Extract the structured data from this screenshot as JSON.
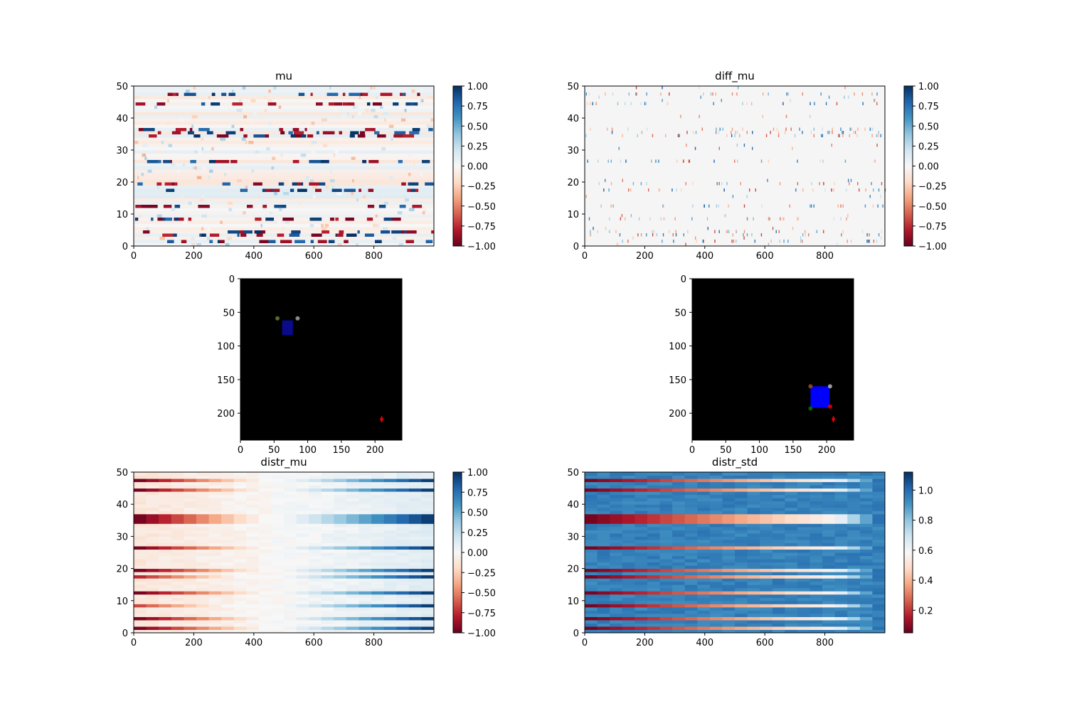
{
  "chart_data": [
    {
      "id": "mu",
      "type": "heatmap",
      "title": "mu",
      "xlim": [
        0,
        1000
      ],
      "ylim": [
        0,
        50
      ],
      "xticks": [
        0,
        200,
        400,
        600,
        800
      ],
      "yticks": [
        0,
        10,
        20,
        30,
        40,
        50
      ],
      "colormap": "RdBu",
      "colorbar": {
        "range": [
          -1.0,
          1.0
        ],
        "ticks": [
          "1.00",
          "0.75",
          "0.50",
          "0.25",
          "0.00",
          "−0.25",
          "−0.50",
          "−0.75",
          "−1.00"
        ]
      }
    },
    {
      "id": "diff_mu",
      "type": "heatmap",
      "title": "diff_mu",
      "xlim": [
        0,
        1000
      ],
      "ylim": [
        0,
        50
      ],
      "xticks": [
        0,
        200,
        400,
        600,
        800
      ],
      "yticks": [
        0,
        10,
        20,
        30,
        40,
        50
      ],
      "colormap": "RdBu",
      "colorbar": {
        "range": [
          -1.0,
          1.0
        ],
        "ticks": [
          "1.00",
          "0.75",
          "0.50",
          "0.25",
          "0.00",
          "−0.25",
          "−0.50",
          "−0.75",
          "−1.00"
        ]
      }
    },
    {
      "id": "frame_a",
      "type": "image",
      "xlim": [
        0,
        240
      ],
      "ylim": [
        0,
        240
      ],
      "xticks": [
        0,
        50,
        100,
        150,
        200
      ],
      "yticks": [
        0,
        50,
        100,
        150,
        200
      ],
      "background": "#000000",
      "objects": [
        {
          "kind": "agent-body",
          "x": 70,
          "y": 73,
          "w": 16,
          "h": 22,
          "color": "#0a0a8c"
        },
        {
          "kind": "agent-marker",
          "x": 55,
          "y": 59,
          "color": "#556b2f"
        },
        {
          "kind": "agent-marker",
          "x": 85,
          "y": 59,
          "color": "#8a8a8a"
        },
        {
          "kind": "target",
          "x": 210,
          "y": 209,
          "color": "#e00000"
        }
      ]
    },
    {
      "id": "frame_b",
      "type": "image",
      "xlim": [
        0,
        240
      ],
      "ylim": [
        0,
        240
      ],
      "xticks": [
        0,
        50,
        100,
        150,
        200
      ],
      "yticks": [
        0,
        50,
        100,
        150,
        200
      ],
      "background": "#000000",
      "objects": [
        {
          "kind": "agent-body",
          "x": 190,
          "y": 176,
          "w": 28,
          "h": 32,
          "color": "#0000ff"
        },
        {
          "kind": "agent-marker",
          "x": 176,
          "y": 160,
          "color": "#8b4513"
        },
        {
          "kind": "agent-marker",
          "x": 205,
          "y": 160,
          "color": "#9a9a9a"
        },
        {
          "kind": "agent-marker",
          "x": 176,
          "y": 193,
          "color": "#006400"
        },
        {
          "kind": "agent-marker",
          "x": 205,
          "y": 190,
          "color": "#cc0000"
        },
        {
          "kind": "target",
          "x": 210,
          "y": 209,
          "color": "#e00000"
        }
      ]
    },
    {
      "id": "distr_mu",
      "type": "heatmap",
      "title": "distr_mu",
      "xlim": [
        0,
        1000
      ],
      "ylim": [
        0,
        50
      ],
      "xticks": [
        0,
        200,
        400,
        600,
        800
      ],
      "yticks": [
        0,
        10,
        20,
        30,
        40,
        50
      ],
      "colormap": "RdBu",
      "colorbar": {
        "range": [
          -1.0,
          1.0
        ],
        "ticks": [
          "1.00",
          "0.75",
          "0.50",
          "0.25",
          "0.00",
          "−0.25",
          "−0.50",
          "−0.75",
          "−1.00"
        ]
      }
    },
    {
      "id": "distr_std",
      "type": "heatmap",
      "title": "distr_std",
      "xlim": [
        0,
        1000
      ],
      "ylim": [
        0,
        50
      ],
      "xticks": [
        0,
        200,
        400,
        600,
        800
      ],
      "yticks": [
        0,
        10,
        20,
        30,
        40,
        50
      ],
      "colormap": "RdBu",
      "colorbar": {
        "range": [
          0.05,
          1.12
        ],
        "ticks": [
          "1.0",
          "0.8",
          "0.6",
          "0.4",
          "0.2"
        ]
      }
    }
  ]
}
